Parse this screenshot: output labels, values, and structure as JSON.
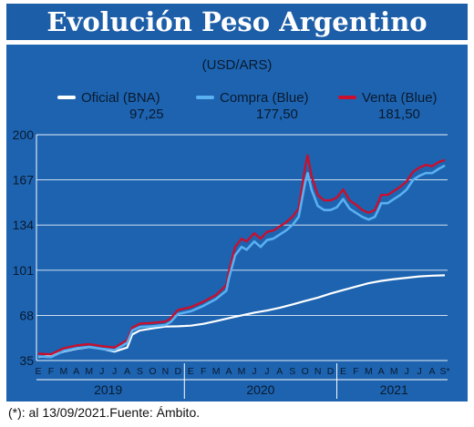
{
  "title": "Evolución Peso Argentino",
  "footnote": "(*): al 13/09/2021.Fuente: Ámbito.",
  "colors": {
    "panel": "#1d63b0",
    "header": "#1d5ea8",
    "oficial": "#ffffff",
    "compra": "#5ab0f0",
    "venta": "#c8102e",
    "text": "#0a1a2e",
    "grid": "#ffffff"
  },
  "chart_data": {
    "type": "line",
    "subtitle": "(USD/ARS)",
    "ylim": [
      35,
      200
    ],
    "yticks": [
      35,
      68,
      101,
      134,
      167,
      200
    ],
    "grid": true,
    "legend_position": "top",
    "x_months": [
      "2019-01",
      "2019-02",
      "2019-03",
      "2019-04",
      "2019-05",
      "2019-06",
      "2019-07",
      "2019-08",
      "2019-09",
      "2019-10",
      "2019-11",
      "2019-12",
      "2020-01",
      "2020-02",
      "2020-03",
      "2020-04",
      "2020-05",
      "2020-06",
      "2020-07",
      "2020-08",
      "2020-09",
      "2020-10",
      "2020-11",
      "2020-12",
      "2021-01",
      "2021-02",
      "2021-03",
      "2021-04",
      "2021-05",
      "2021-06",
      "2021-07",
      "2021-08",
      "2021-09"
    ],
    "x_tick_labels": [
      "E",
      "F",
      "M",
      "A",
      "M",
      "J",
      "J",
      "A",
      "S",
      "O",
      "N",
      "D",
      "E",
      "F",
      "M",
      "A",
      "M",
      "J",
      "J",
      "A",
      "S",
      "O",
      "N",
      "D",
      "E",
      "F",
      "M",
      "A",
      "M",
      "J",
      "J",
      "A",
      "S*"
    ],
    "year_labels": [
      {
        "label": "2019",
        "from": 0,
        "to": 11
      },
      {
        "label": "2020",
        "from": 12,
        "to": 23
      },
      {
        "label": "2021",
        "from": 24,
        "to": 32
      }
    ],
    "series": [
      {
        "name": "Oficial (BNA)",
        "last_value": "97,25",
        "color": "#ffffff",
        "points": [
          [
            0,
            37.5
          ],
          [
            1,
            38.5
          ],
          [
            2,
            41.5
          ],
          [
            3,
            43.5
          ],
          [
            4,
            44.8
          ],
          [
            5,
            43.5
          ],
          [
            6,
            41.5
          ],
          [
            7,
            44.5
          ],
          [
            7.4,
            54
          ],
          [
            8,
            57
          ],
          [
            9,
            58.5
          ],
          [
            10,
            59.8
          ],
          [
            11,
            60
          ],
          [
            12,
            60.5
          ],
          [
            13,
            61.8
          ],
          [
            14,
            63.8
          ],
          [
            15,
            66
          ],
          [
            16,
            68
          ],
          [
            17,
            70
          ],
          [
            18,
            71.5
          ],
          [
            19,
            73.5
          ],
          [
            20,
            76
          ],
          [
            21,
            78.5
          ],
          [
            22,
            81
          ],
          [
            23,
            84
          ],
          [
            24,
            86.5
          ],
          [
            25,
            89
          ],
          [
            26,
            91.5
          ],
          [
            27,
            93.2
          ],
          [
            28,
            94.5
          ],
          [
            29,
            95.5
          ],
          [
            30,
            96.5
          ],
          [
            31,
            97
          ],
          [
            32,
            97.3
          ]
        ]
      },
      {
        "name": "Compra (Blue)",
        "last_value": "177,50",
        "color": "#5ab0f0",
        "points": [
          [
            0,
            38
          ],
          [
            1,
            37.5
          ],
          [
            2,
            42
          ],
          [
            3,
            44
          ],
          [
            4,
            45
          ],
          [
            5,
            43.5
          ],
          [
            6,
            42.5
          ],
          [
            7,
            48
          ],
          [
            7.4,
            57
          ],
          [
            8,
            59.5
          ],
          [
            9,
            60
          ],
          [
            10,
            61
          ],
          [
            10.4,
            63
          ],
          [
            10.8,
            67
          ],
          [
            11,
            69
          ],
          [
            12,
            71
          ],
          [
            13,
            75
          ],
          [
            14,
            80
          ],
          [
            14.8,
            86
          ],
          [
            15,
            95
          ],
          [
            15.5,
            112
          ],
          [
            16,
            118
          ],
          [
            16.4,
            116
          ],
          [
            17,
            122
          ],
          [
            17.5,
            118
          ],
          [
            18,
            123
          ],
          [
            18.5,
            124
          ],
          [
            19,
            127
          ],
          [
            19.5,
            130
          ],
          [
            20,
            134
          ],
          [
            20.5,
            140
          ],
          [
            21,
            165
          ],
          [
            21.2,
            172
          ],
          [
            21.5,
            160
          ],
          [
            22,
            148
          ],
          [
            22.5,
            145
          ],
          [
            23,
            145
          ],
          [
            23.5,
            147
          ],
          [
            24,
            153
          ],
          [
            24.5,
            146
          ],
          [
            25,
            143
          ],
          [
            25.5,
            140
          ],
          [
            26,
            138
          ],
          [
            26.5,
            140
          ],
          [
            27,
            150
          ],
          [
            27.5,
            150
          ],
          [
            28,
            153
          ],
          [
            28.5,
            156
          ],
          [
            29,
            160
          ],
          [
            29.5,
            167
          ],
          [
            30,
            170
          ],
          [
            30.5,
            172
          ],
          [
            31,
            172
          ],
          [
            31.5,
            175
          ],
          [
            32,
            177.5
          ]
        ]
      },
      {
        "name": "Venta (Blue)",
        "last_value": "181,50",
        "color": "#c8102e",
        "points": [
          [
            0,
            40
          ],
          [
            1,
            39.5
          ],
          [
            2,
            44
          ],
          [
            3,
            46
          ],
          [
            4,
            47
          ],
          [
            5,
            45.5
          ],
          [
            6,
            44.5
          ],
          [
            7,
            50
          ],
          [
            7.4,
            59
          ],
          [
            8,
            62
          ],
          [
            9,
            62.5
          ],
          [
            10,
            63.5
          ],
          [
            10.4,
            65.5
          ],
          [
            10.8,
            70
          ],
          [
            11,
            72
          ],
          [
            12,
            74
          ],
          [
            13,
            78
          ],
          [
            14,
            83
          ],
          [
            14.8,
            90
          ],
          [
            15,
            100
          ],
          [
            15.5,
            118
          ],
          [
            16,
            124
          ],
          [
            16.4,
            122
          ],
          [
            17,
            128
          ],
          [
            17.5,
            124
          ],
          [
            18,
            129
          ],
          [
            18.5,
            130
          ],
          [
            19,
            133
          ],
          [
            19.5,
            136
          ],
          [
            20,
            140
          ],
          [
            20.5,
            146
          ],
          [
            21,
            176
          ],
          [
            21.2,
            185
          ],
          [
            21.5,
            170
          ],
          [
            22,
            156
          ],
          [
            22.5,
            152
          ],
          [
            23,
            152
          ],
          [
            23.5,
            154
          ],
          [
            24,
            160
          ],
          [
            24.5,
            152
          ],
          [
            25,
            149
          ],
          [
            25.5,
            145
          ],
          [
            26,
            143
          ],
          [
            26.5,
            145
          ],
          [
            27,
            156
          ],
          [
            27.5,
            156
          ],
          [
            28,
            159
          ],
          [
            28.5,
            162
          ],
          [
            29,
            166
          ],
          [
            29.5,
            173
          ],
          [
            30,
            176
          ],
          [
            30.5,
            178
          ],
          [
            31,
            177
          ],
          [
            31.5,
            180
          ],
          [
            32,
            181.5
          ]
        ]
      }
    ]
  }
}
